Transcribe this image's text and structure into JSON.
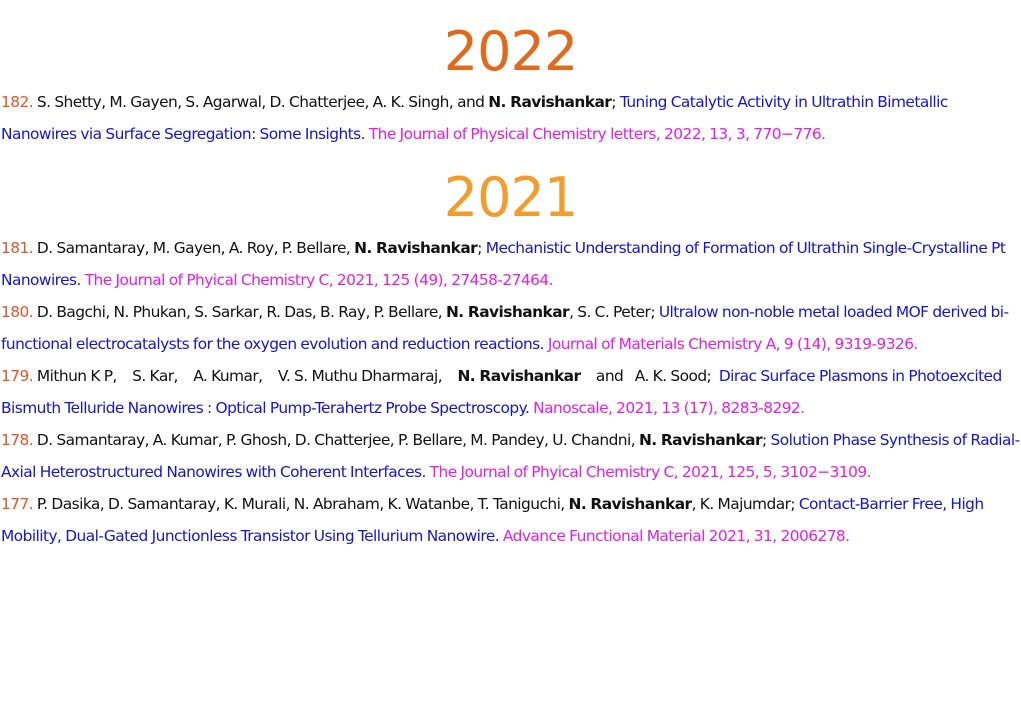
{
  "sections": [
    {
      "year": "2022",
      "entries": [
        {
          "num": "182.",
          "authors_pre": " S. Shetty, M. Gayen, S. Agarwal, D. Chatterjee, A. K. Singh, and ",
          "pi": "N. Ravishankar",
          "authors_post": "; ",
          "title": "Tuning Catalytic Activity in Ultrathin Bimetallic Nanowires via Surface Segregation: Some Insights.",
          "journal": " The Journal of Physical Chemistry letters, 2022, 13, 3, 770−776."
        }
      ]
    },
    {
      "year": "2021",
      "entries": [
        {
          "num": "181.",
          "authors_pre": " D. Samantaray, M. Gayen, A. Roy, P. Bellare, ",
          "pi": "N. Ravishankar",
          "authors_post": "; ",
          "title": "Mechanistic Understanding of Formation of Ultrathin Single-Crystalline Pt Nanowires.",
          "journal": " The Journal of Phyical Chemistry C, 2021, 125 (49), 27458-27464."
        },
        {
          "num": "180.",
          "authors_pre": " D. Bagchi, N. Phukan, S. Sarkar, R. Das, B. Ray, P. Bellare, ",
          "pi": "N. Ravishankar",
          "authors_post": ", S. C. Peter; ",
          "title": "Ultralow non-noble metal loaded MOF derived bi-functional electrocatalysts for the oxygen evolution and reduction reactions.",
          "journal": " Journal of Materials Chemistry A, 9 (14), 9319-9326."
        },
        {
          "num": "179.",
          "authors_pre": " Mithun K P,    S. Kar,    A. Kumar,    V. S. Muthu Dharmaraj,    ",
          "pi": "N. Ravishankar",
          "authors_post": "    and   A. K. Sood;  ",
          "title": "Dirac Surface Plasmons in Photoexcited Bismuth Telluride Nanowires : Optical Pump-Terahertz Probe Spectroscopy.",
          "journal": "  Nanoscale, 2021, 13 (17), 8283-8292."
        },
        {
          "num": "178.",
          "authors_pre": "  D. Samantaray, A. Kumar, P. Ghosh, D. Chatterjee, P. Bellare, M. Pandey, U. Chandni, ",
          "pi": "N. Ravishankar",
          "authors_post": "; ",
          "title": "Solution Phase Synthesis of Radial-Axial Heterostructured Nanowires with Coherent Interfaces.",
          "journal": " The Journal of Phyical Chemistry C, 2021, 125, 5, 3102−3109."
        },
        {
          "num": "177.",
          "authors_pre": "  P. Dasika, D. Samantaray, K. Murali, N. Abraham, K. Watanbe, T. Taniguchi, ",
          "pi": "N. Ravishankar",
          "authors_post": ", K. Majumdar; ",
          "title": "Contact-Barrier Free, High Mobility, Dual-Gated Junctionless Transistor Using Tellurium Nanowire.",
          "journal": " Advance Functional Material 2021, 31, 2006278."
        }
      ]
    }
  ],
  "colors": {
    "year_2022": "#e06a1c",
    "year_2021": "#f39c2c",
    "number": "#e0562a",
    "title": "#1414d4",
    "journal": "#e31ee3"
  }
}
